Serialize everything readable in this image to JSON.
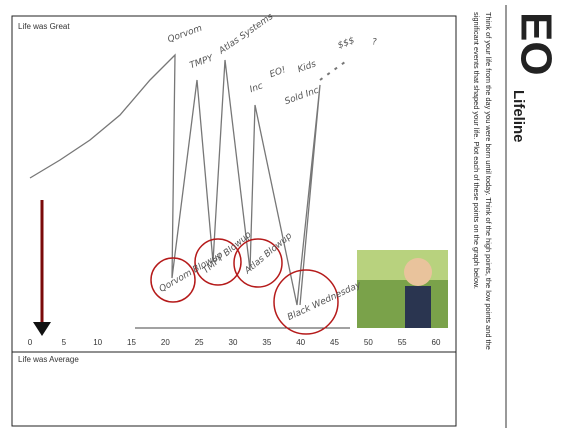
{
  "header": {
    "logo": "EO",
    "title": "Lifeline",
    "instructions": [
      "Think of your life from the day you were born until today. Think of the high points, the low points and the",
      "significant events that shaped your life. Plot each of these points on the graph below."
    ]
  },
  "graph": {
    "top_label": "Life was Great",
    "bottom_label": "Life was Average",
    "axis": [
      0,
      5,
      10,
      15,
      20,
      25,
      30,
      35,
      40,
      45,
      50,
      55,
      60
    ],
    "high_points": [
      "Qorvom",
      "TMPY",
      "Atlas Systems",
      "Inc",
      "EO!",
      "Kids",
      "Sold Inc",
      "$$$",
      "?"
    ],
    "low_points": [
      "Qorvom Blowup",
      "TMPY Blowup",
      "Atlas Blowup",
      "Black Wednesday"
    ]
  }
}
